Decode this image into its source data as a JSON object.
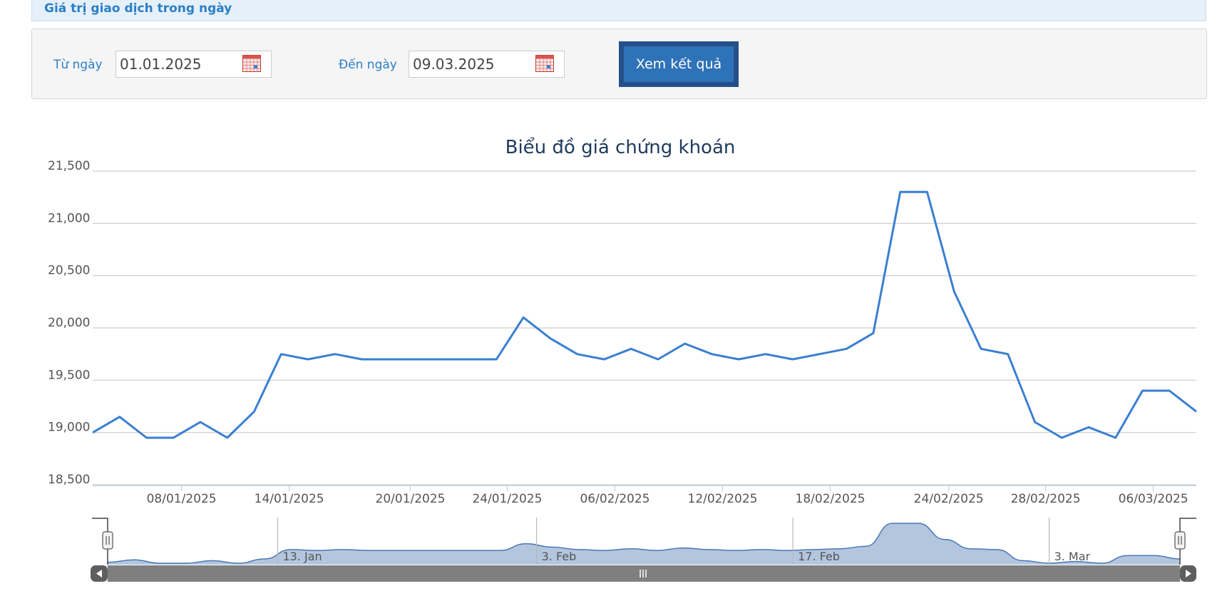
{
  "header": {
    "title": "Giá trị giao dịch trong ngày"
  },
  "filter": {
    "from_label": "Từ ngày",
    "from_value": "01.01.2025",
    "to_label": "Đến ngày",
    "to_value": "09.03.2025",
    "submit_label": "Xem kết quả"
  },
  "icons": {
    "calendar": "calendar-icon",
    "scroll_left": "arrow-left-icon",
    "scroll_right": "arrow-right-icon",
    "scroll_grip": "grip-icon",
    "handle": "grip-icon"
  },
  "colors": {
    "line": "#3a7fd1",
    "accent": "#2a7fc9",
    "button": "#2e72b8",
    "navigator_fill": "#b3c6de"
  },
  "chart_data": {
    "type": "line",
    "title": "Biểu đồ giá chứng khoán",
    "ylim": [
      18500,
      21500
    ],
    "yticks": [
      18500,
      19000,
      19500,
      20000,
      20500,
      21000,
      21500
    ],
    "ytick_labels": [
      "18,500",
      "19,000",
      "19,500",
      "20,000",
      "20,500",
      "21,000",
      "21,500"
    ],
    "grid": true,
    "x_labels": [
      "08/01/2025",
      "14/01/2025",
      "20/01/2025",
      "24/01/2025",
      "06/02/2025",
      "12/02/2025",
      "18/02/2025",
      "24/02/2025",
      "28/02/2025",
      "06/03/2025"
    ],
    "x_label_positions": [
      3.3,
      7.3,
      11.8,
      15.4,
      19.4,
      23.4,
      27.4,
      31.8,
      35.4,
      39.4
    ],
    "series": [
      {
        "values": [
          19000,
          19150,
          18950,
          18950,
          19100,
          18950,
          19200,
          19750,
          19700,
          19750,
          19700,
          19700,
          19700,
          19700,
          19700,
          19700,
          20100,
          19900,
          19750,
          19700,
          19800,
          19700,
          19850,
          19750,
          19700,
          19750,
          19700,
          19750,
          19800,
          19950,
          21300,
          21300,
          20350,
          19800,
          19750,
          19100,
          18950,
          19050,
          18950,
          19400,
          19400,
          19200
        ]
      }
    ],
    "navigator": {
      "labels": [
        "13. Jan",
        "3. Feb",
        "17. Feb",
        "3. Mar"
      ],
      "label_positions": [
        6.5,
        16.4,
        26.2,
        36.0
      ]
    }
  }
}
